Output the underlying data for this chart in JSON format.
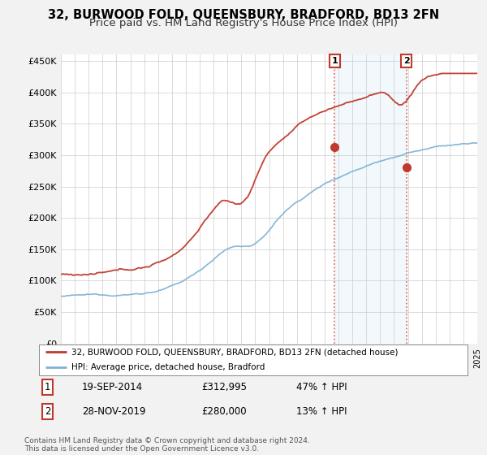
{
  "title": "32, BURWOOD FOLD, QUEENSBURY, BRADFORD, BD13 2FN",
  "subtitle": "Price paid vs. HM Land Registry's House Price Index (HPI)",
  "ylim": [
    0,
    460000
  ],
  "yticks": [
    0,
    50000,
    100000,
    150000,
    200000,
    250000,
    300000,
    350000,
    400000,
    450000
  ],
  "ytick_labels": [
    "£0",
    "£50K",
    "£100K",
    "£150K",
    "£200K",
    "£250K",
    "£300K",
    "£350K",
    "£400K",
    "£450K"
  ],
  "x_start_year": 1995,
  "x_end_year": 2025,
  "hpi_color": "#7fb3d3",
  "price_color": "#c0392b",
  "background_color": "#f2f2f2",
  "plot_bg_color": "#ffffff",
  "legend_items": [
    "32, BURWOOD FOLD, QUEENSBURY, BRADFORD, BD13 2FN (detached house)",
    "HPI: Average price, detached house, Bradford"
  ],
  "transaction1": {
    "label": "1",
    "date": "19-SEP-2014",
    "price": "£312,995",
    "hpi": "47% ↑ HPI",
    "year": 2014.72,
    "y": 312995
  },
  "transaction2": {
    "label": "2",
    "date": "28-NOV-2019",
    "price": "£280,000",
    "hpi": "13% ↑ HPI",
    "year": 2019.9,
    "y": 280000
  },
  "footer": "Contains HM Land Registry data © Crown copyright and database right 2024.\nThis data is licensed under the Open Government Licence v3.0.",
  "title_fontsize": 10.5,
  "subtitle_fontsize": 9.5
}
